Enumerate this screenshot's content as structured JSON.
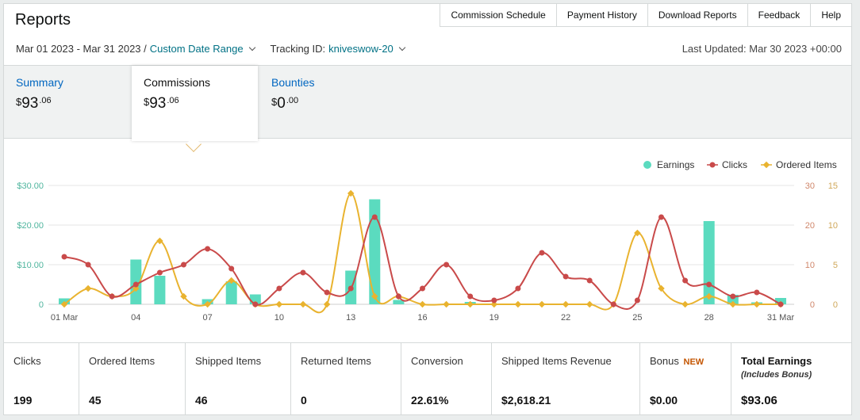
{
  "header": {
    "title": "Reports",
    "nav": [
      "Commission Schedule",
      "Payment History",
      "Download Reports",
      "Feedback",
      "Help"
    ]
  },
  "filters": {
    "date_range": "Mar 01 2023 - Mar 31 2023 /",
    "custom_range_label": "Custom Date Range",
    "tracking_label": "Tracking ID:",
    "tracking_id": "kniveswow-20",
    "last_updated": "Last Updated: Mar 30 2023 +00:00"
  },
  "tabs": [
    {
      "label": "Summary",
      "dollar": "$",
      "whole": "93",
      "cents": ".06"
    },
    {
      "label": "Commissions",
      "dollar": "$",
      "whole": "93",
      "cents": ".06"
    },
    {
      "label": "Bounties",
      "dollar": "$",
      "whole": "0",
      "cents": ".00"
    }
  ],
  "chart_data": {
    "type": "bar",
    "x": [
      "01 Mar",
      "02",
      "03",
      "04",
      "05",
      "06",
      "07",
      "08",
      "09",
      "10",
      "11",
      "12",
      "13",
      "14",
      "15",
      "16",
      "17",
      "18",
      "19",
      "20",
      "21",
      "22",
      "23",
      "24",
      "25",
      "26",
      "27",
      "28",
      "29",
      "30",
      "31 Mar"
    ],
    "xtick_labels": [
      "01 Mar",
      "04",
      "07",
      "10",
      "13",
      "16",
      "19",
      "22",
      "25",
      "28",
      "31 Mar"
    ],
    "left_axis": {
      "ticks": [
        "$30.00",
        "$20.00",
        "$10.00",
        "0"
      ],
      "ylim": [
        0,
        30
      ]
    },
    "right_axis_clicks": {
      "ticks": [
        "30",
        "20",
        "10",
        "0"
      ],
      "ylim": [
        0,
        30
      ]
    },
    "right_axis_items": {
      "ticks": [
        "15",
        "10",
        "5",
        "0"
      ],
      "ylim": [
        0,
        15
      ]
    },
    "series": [
      {
        "name": "Earnings",
        "type": "bar",
        "color": "#5bdbbf",
        "values": [
          1.5,
          0,
          0,
          11.3,
          7.2,
          0,
          1.3,
          5.8,
          2.5,
          0,
          0,
          0,
          8.5,
          26.5,
          1.1,
          0,
          0,
          0.6,
          0,
          0,
          0,
          0,
          0,
          0,
          0,
          0,
          0,
          21,
          2.4,
          0.5,
          1.6
        ]
      },
      {
        "name": "Clicks",
        "type": "line",
        "color": "#c94a4a",
        "values": [
          12,
          10,
          2,
          5,
          8,
          10,
          14,
          9,
          0,
          4,
          8,
          3,
          4,
          22,
          2,
          4,
          10,
          2,
          1,
          4,
          13,
          7,
          6,
          0,
          1,
          22,
          6,
          5,
          2,
          3,
          0
        ]
      },
      {
        "name": "Ordered Items",
        "type": "line",
        "color": "#e9b32f",
        "values": [
          0,
          2,
          1,
          2,
          8,
          1,
          0,
          3,
          0,
          0,
          0,
          0,
          14,
          1,
          1,
          0,
          0,
          0,
          0,
          0,
          0,
          0,
          0,
          0,
          9,
          2,
          0,
          1,
          0,
          0,
          0
        ]
      }
    ],
    "legend": [
      "Earnings",
      "Clicks",
      "Ordered Items"
    ],
    "legend_position": "top-right",
    "grid": true
  },
  "stats": [
    {
      "label": "Clicks",
      "value": "199"
    },
    {
      "label": "Ordered Items",
      "value": "45"
    },
    {
      "label": "Shipped Items",
      "value": "46"
    },
    {
      "label": "Returned Items",
      "value": "0"
    },
    {
      "label": "Conversion",
      "value": "22.61%"
    },
    {
      "label": "Shipped Items Revenue",
      "value": "$2,618.21"
    },
    {
      "label": "Bonus",
      "badge": "NEW",
      "value": "$0.00"
    },
    {
      "label": "Total Earnings",
      "sub": "(Includes Bonus)",
      "value": "$93.06"
    }
  ]
}
